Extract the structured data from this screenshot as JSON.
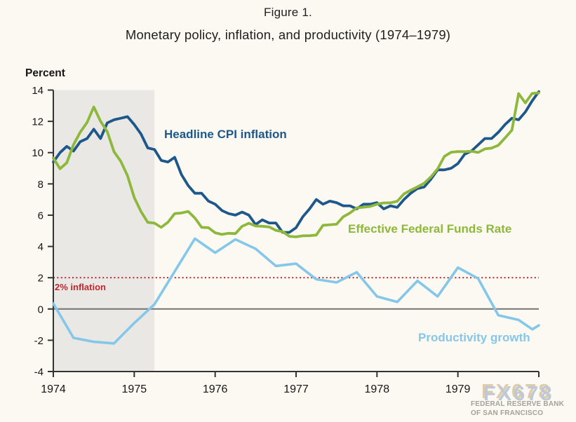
{
  "watermark": {
    "logo": "FX678",
    "attribution_line1": "FEDERAL RESERVE BANK",
    "attribution_line2": "OF SAN FRANCISCO"
  },
  "chart_data": {
    "type": "line",
    "title": "Figure 1.",
    "subtitle": "Monetary policy, inflation, and productivity (1974–1979)",
    "ylabel": "Percent",
    "xlabel": "",
    "ylim": [
      -4,
      14
    ],
    "yticks": [
      14,
      12,
      10,
      8,
      6,
      4,
      2,
      0,
      -2,
      -4
    ],
    "x_range": [
      1974,
      1980
    ],
    "xticks": [
      {
        "label": "1974",
        "t": 1974
      },
      {
        "label": "1975",
        "t": 1975
      },
      {
        "label": "1976",
        "t": 1976
      },
      {
        "label": "1977",
        "t": 1977
      },
      {
        "label": "1978",
        "t": 1978
      },
      {
        "label": "1979",
        "t": 1979
      },
      {
        "label": "",
        "t": 1980
      }
    ],
    "grid": false,
    "zero_line": true,
    "legend_position": "inline-labels",
    "recession_band": {
      "from": 1974.0,
      "to": 1975.25,
      "color": "#e9e8e4"
    },
    "target_line": {
      "value": 2,
      "label": "2% inflation",
      "color": "#c2262c",
      "style": "dotted"
    },
    "series": [
      {
        "id": "cpi",
        "name": "Headline CPI inflation",
        "color": "#1e578a",
        "frequency": "monthly",
        "x_start": 1974.0,
        "x_step": 0.0833333,
        "values": [
          9.4,
          10.0,
          10.4,
          10.1,
          10.7,
          10.9,
          11.5,
          10.9,
          11.9,
          12.1,
          12.2,
          12.3,
          11.8,
          11.2,
          10.3,
          10.2,
          9.5,
          9.4,
          9.7,
          8.6,
          7.9,
          7.4,
          7.4,
          6.9,
          6.7,
          6.3,
          6.1,
          6.0,
          6.2,
          6.0,
          5.4,
          5.7,
          5.5,
          5.5,
          4.9,
          4.9,
          5.2,
          5.9,
          6.4,
          7.0,
          6.7,
          6.9,
          6.8,
          6.6,
          6.6,
          6.4,
          6.7,
          6.7,
          6.8,
          6.4,
          6.6,
          6.5,
          7.0,
          7.4,
          7.7,
          7.8,
          8.3,
          8.9,
          8.9,
          9.0,
          9.3,
          9.9,
          10.1,
          10.5,
          10.9,
          10.9,
          11.3,
          11.8,
          12.2,
          12.1,
          12.6,
          13.3,
          13.9
        ]
      },
      {
        "id": "ffr",
        "name": "Effective Federal Funds Rate",
        "color": "#8eb83c",
        "frequency": "monthly",
        "x_start": 1974.0,
        "x_step": 0.0833333,
        "values": [
          9.65,
          8.97,
          9.35,
          10.51,
          11.31,
          11.93,
          12.92,
          12.01,
          11.34,
          10.06,
          9.45,
          8.53,
          7.13,
          6.24,
          5.54,
          5.49,
          5.22,
          5.55,
          6.1,
          6.14,
          6.24,
          5.82,
          5.22,
          5.2,
          4.87,
          4.77,
          4.84,
          4.82,
          5.29,
          5.48,
          5.31,
          5.29,
          5.25,
          5.03,
          4.95,
          4.65,
          4.61,
          4.68,
          4.69,
          4.73,
          5.35,
          5.39,
          5.42,
          5.9,
          6.14,
          6.47,
          6.51,
          6.56,
          6.7,
          6.78,
          6.79,
          6.89,
          7.36,
          7.6,
          7.81,
          8.04,
          8.45,
          8.96,
          9.76,
          10.03,
          10.07,
          10.06,
          10.09,
          10.01,
          10.24,
          10.29,
          10.47,
          10.94,
          11.43,
          13.77,
          13.18,
          13.78,
          13.82
        ]
      },
      {
        "id": "productivity",
        "name": "Productivity growth",
        "color": "#85c7e9",
        "frequency": "quarterly",
        "points": [
          [
            1974.0,
            0.35
          ],
          [
            1974.25,
            -1.85
          ],
          [
            1974.5,
            -2.1
          ],
          [
            1974.75,
            -2.2
          ],
          [
            1975.0,
            -0.9
          ],
          [
            1975.25,
            0.3
          ],
          [
            1975.5,
            2.4
          ],
          [
            1975.75,
            4.5
          ],
          [
            1976.0,
            3.6
          ],
          [
            1976.25,
            4.45
          ],
          [
            1976.5,
            3.85
          ],
          [
            1976.75,
            2.75
          ],
          [
            1977.0,
            2.9
          ],
          [
            1977.25,
            1.9
          ],
          [
            1977.5,
            1.7
          ],
          [
            1977.75,
            2.35
          ],
          [
            1978.0,
            0.8
          ],
          [
            1978.25,
            0.45
          ],
          [
            1978.5,
            1.8
          ],
          [
            1978.75,
            0.8
          ],
          [
            1979.0,
            2.65
          ],
          [
            1979.25,
            1.95
          ],
          [
            1979.5,
            -0.4
          ],
          [
            1979.75,
            -0.7
          ],
          [
            1979.92,
            -1.3
          ],
          [
            1980.0,
            -1.05
          ]
        ]
      }
    ]
  }
}
